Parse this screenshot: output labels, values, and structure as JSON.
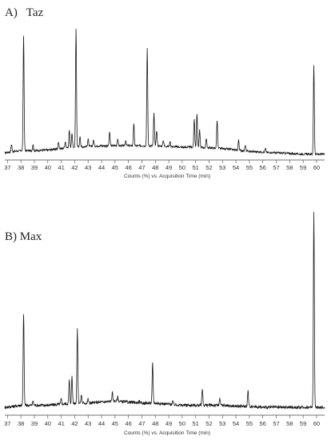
{
  "chart_data": [
    {
      "type": "line",
      "title": "A)   Taz",
      "xlabel": "Counts (%) vs. Acquisition Time (min)",
      "ylabel": "",
      "xlim": [
        36.8,
        60.6
      ],
      "ylim": [
        0,
        100
      ],
      "xticks": [
        "37",
        "38",
        "39",
        "40",
        "41",
        "42",
        "43",
        "44",
        "45",
        "46",
        "47",
        "48",
        "49",
        "50",
        "51",
        "52",
        "53",
        "54",
        "55",
        "56",
        "57",
        "58",
        "59",
        "60"
      ],
      "grid": false,
      "baseline": [
        {
          "x": 36.8,
          "y": 4
        },
        {
          "x": 37.5,
          "y": 5
        },
        {
          "x": 38.0,
          "y": 5.5
        },
        {
          "x": 39.0,
          "y": 5.5
        },
        {
          "x": 40.0,
          "y": 6
        },
        {
          "x": 41.0,
          "y": 7
        },
        {
          "x": 42.0,
          "y": 8
        },
        {
          "x": 43.0,
          "y": 8.5
        },
        {
          "x": 44.0,
          "y": 9
        },
        {
          "x": 45.0,
          "y": 9
        },
        {
          "x": 46.0,
          "y": 9
        },
        {
          "x": 47.0,
          "y": 9
        },
        {
          "x": 48.0,
          "y": 9
        },
        {
          "x": 49.0,
          "y": 8.5
        },
        {
          "x": 50.0,
          "y": 8
        },
        {
          "x": 51.0,
          "y": 8
        },
        {
          "x": 52.0,
          "y": 7.5
        },
        {
          "x": 53.0,
          "y": 7
        },
        {
          "x": 54.0,
          "y": 6
        },
        {
          "x": 55.0,
          "y": 5
        },
        {
          "x": 56.0,
          "y": 4.5
        },
        {
          "x": 57.0,
          "y": 4
        },
        {
          "x": 58.0,
          "y": 3.5
        },
        {
          "x": 59.0,
          "y": 3
        },
        {
          "x": 60.0,
          "y": 3
        },
        {
          "x": 60.6,
          "y": 3
        }
      ],
      "peaks": [
        {
          "x": 37.3,
          "y": 10
        },
        {
          "x": 38.2,
          "y": 87
        },
        {
          "x": 38.9,
          "y": 10
        },
        {
          "x": 40.8,
          "y": 12
        },
        {
          "x": 41.3,
          "y": 12
        },
        {
          "x": 41.6,
          "y": 20
        },
        {
          "x": 41.8,
          "y": 18
        },
        {
          "x": 42.1,
          "y": 92
        },
        {
          "x": 42.4,
          "y": 16
        },
        {
          "x": 43.0,
          "y": 14
        },
        {
          "x": 43.4,
          "y": 13
        },
        {
          "x": 44.6,
          "y": 19
        },
        {
          "x": 45.2,
          "y": 14
        },
        {
          "x": 45.8,
          "y": 13
        },
        {
          "x": 46.4,
          "y": 25
        },
        {
          "x": 47.4,
          "y": 78
        },
        {
          "x": 47.9,
          "y": 32
        },
        {
          "x": 48.1,
          "y": 20
        },
        {
          "x": 48.6,
          "y": 13
        },
        {
          "x": 49.1,
          "y": 12
        },
        {
          "x": 50.9,
          "y": 28
        },
        {
          "x": 51.1,
          "y": 32
        },
        {
          "x": 51.3,
          "y": 20
        },
        {
          "x": 51.8,
          "y": 14
        },
        {
          "x": 52.6,
          "y": 27
        },
        {
          "x": 54.2,
          "y": 13
        },
        {
          "x": 54.7,
          "y": 9
        },
        {
          "x": 56.2,
          "y": 7
        },
        {
          "x": 59.8,
          "y": 66
        }
      ]
    },
    {
      "type": "line",
      "title": "B) Max",
      "xlabel": "Counts (%) vs. Acquisition Time (min)",
      "ylabel": "",
      "xlim": [
        36.8,
        60.6
      ],
      "ylim": [
        0,
        100
      ],
      "xticks": [
        "37",
        "38",
        "39",
        "40",
        "41",
        "42",
        "43",
        "44",
        "45",
        "46",
        "47",
        "48",
        "49",
        "50",
        "51",
        "52",
        "53",
        "54",
        "55",
        "56",
        "57",
        "58",
        "59",
        "60"
      ],
      "grid": false,
      "baseline": [
        {
          "x": 36.8,
          "y": 3
        },
        {
          "x": 37.5,
          "y": 3.5
        },
        {
          "x": 38.0,
          "y": 4
        },
        {
          "x": 39.0,
          "y": 4
        },
        {
          "x": 40.0,
          "y": 4
        },
        {
          "x": 41.0,
          "y": 4.5
        },
        {
          "x": 42.0,
          "y": 5
        },
        {
          "x": 43.0,
          "y": 5
        },
        {
          "x": 44.0,
          "y": 5.5
        },
        {
          "x": 45.0,
          "y": 6
        },
        {
          "x": 46.0,
          "y": 5.5
        },
        {
          "x": 47.0,
          "y": 5
        },
        {
          "x": 48.0,
          "y": 5
        },
        {
          "x": 49.0,
          "y": 4.5
        },
        {
          "x": 50.0,
          "y": 4
        },
        {
          "x": 51.0,
          "y": 4
        },
        {
          "x": 52.0,
          "y": 4
        },
        {
          "x": 53.0,
          "y": 4
        },
        {
          "x": 54.0,
          "y": 3.5
        },
        {
          "x": 55.0,
          "y": 3.5
        },
        {
          "x": 56.0,
          "y": 3
        },
        {
          "x": 57.0,
          "y": 3
        },
        {
          "x": 58.0,
          "y": 3
        },
        {
          "x": 59.0,
          "y": 3
        },
        {
          "x": 60.0,
          "y": 3
        },
        {
          "x": 60.6,
          "y": 3
        }
      ],
      "peaks": [
        {
          "x": 38.2,
          "y": 48
        },
        {
          "x": 38.9,
          "y": 6
        },
        {
          "x": 41.0,
          "y": 7
        },
        {
          "x": 41.6,
          "y": 16
        },
        {
          "x": 41.8,
          "y": 18
        },
        {
          "x": 42.2,
          "y": 40
        },
        {
          "x": 42.5,
          "y": 9
        },
        {
          "x": 43.0,
          "y": 7
        },
        {
          "x": 44.8,
          "y": 10
        },
        {
          "x": 45.2,
          "y": 8
        },
        {
          "x": 46.8,
          "y": 6
        },
        {
          "x": 47.8,
          "y": 24
        },
        {
          "x": 49.3,
          "y": 6
        },
        {
          "x": 51.5,
          "y": 12
        },
        {
          "x": 52.8,
          "y": 7
        },
        {
          "x": 54.9,
          "y": 11
        },
        {
          "x": 59.8,
          "y": 96
        }
      ]
    }
  ]
}
